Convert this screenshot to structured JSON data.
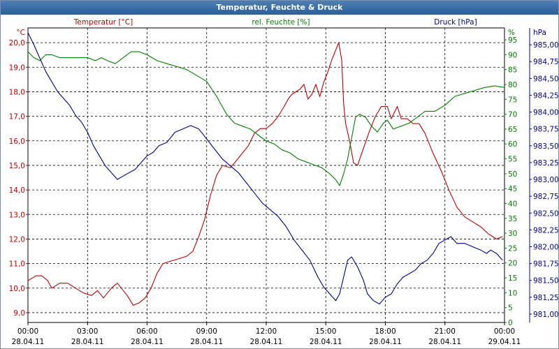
{
  "chart_data": {
    "type": "line",
    "title": "Temperatur, Feuchte & Druck",
    "x_ticks": [
      {
        "time": "00:00",
        "date": "28.04.11"
      },
      {
        "time": "03:00",
        "date": "28.04.11"
      },
      {
        "time": "06:00",
        "date": "28.04.11"
      },
      {
        "time": "09:00",
        "date": "28.04.11"
      },
      {
        "time": "12:00",
        "date": "28.04.11"
      },
      {
        "time": "15:00",
        "date": "28.04.11"
      },
      {
        "time": "18:00",
        "date": "28.04.11"
      },
      {
        "time": "21:00",
        "date": "28.04.11"
      },
      {
        "time": "00:00",
        "date": "29.04.11"
      }
    ],
    "xlim_hours": [
      0,
      24
    ],
    "axes": {
      "temperature": {
        "label": "Temperatur [°C]",
        "unit": "°C",
        "min": 8.6,
        "max": 20.6,
        "ticks": [
          "9,0",
          "10,0",
          "11,0",
          "12,0",
          "13,0",
          "14,0",
          "15,0",
          "16,0",
          "17,0",
          "18,0",
          "19,0",
          "20,0"
        ],
        "tick_values": [
          9,
          10,
          11,
          12,
          13,
          14,
          15,
          16,
          17,
          18,
          19,
          20
        ],
        "color": "#c00000"
      },
      "humidity": {
        "label": "rel. Feuchte [%]",
        "unit": "%",
        "min": 0,
        "max": 99,
        "ticks": [
          "0",
          "5",
          "10",
          "15",
          "20",
          "25",
          "30",
          "35",
          "40",
          "45",
          "50",
          "55",
          "60",
          "65",
          "70",
          "75",
          "80",
          "85",
          "90",
          "95"
        ],
        "tick_values": [
          0,
          5,
          10,
          15,
          20,
          25,
          30,
          35,
          40,
          45,
          50,
          55,
          60,
          65,
          70,
          75,
          80,
          85,
          90,
          95
        ],
        "color": "#008000"
      },
      "pressure": {
        "label": "Druck [hPa]",
        "unit": "hPa",
        "min": 980.875,
        "max": 985.25,
        "ticks": [
          "981,00",
          "981,25",
          "981,50",
          "981,75",
          "982,00",
          "982,25",
          "982,50",
          "982,75",
          "983,00",
          "983,25",
          "983,50",
          "983,75",
          "984,00",
          "984,25",
          "984,50",
          "984,75",
          "985,00"
        ],
        "tick_values": [
          981,
          981.25,
          981.5,
          981.75,
          982,
          982.25,
          982.5,
          982.75,
          983,
          983.25,
          983.5,
          983.75,
          984,
          984.25,
          984.5,
          984.75,
          985
        ],
        "color": "#000090"
      }
    },
    "grid": true,
    "series": [
      {
        "name": "Temperatur",
        "axis": "temperature",
        "color": "#c00000",
        "points": [
          [
            0,
            10.3
          ],
          [
            0.4,
            10.5
          ],
          [
            0.7,
            10.5
          ],
          [
            1,
            10.3
          ],
          [
            1.2,
            10.0
          ],
          [
            1.6,
            10.2
          ],
          [
            2,
            10.2
          ],
          [
            2.4,
            10.0
          ],
          [
            2.8,
            9.8
          ],
          [
            3.2,
            9.7
          ],
          [
            3.5,
            9.9
          ],
          [
            3.8,
            9.6
          ],
          [
            4.2,
            10.0
          ],
          [
            4.5,
            10.2
          ],
          [
            4.8,
            9.9
          ],
          [
            5,
            9.7
          ],
          [
            5.3,
            9.3
          ],
          [
            5.6,
            9.4
          ],
          [
            5.9,
            9.6
          ],
          [
            6.2,
            10.0
          ],
          [
            6.5,
            10.6
          ],
          [
            6.8,
            11.0
          ],
          [
            7.2,
            11.1
          ],
          [
            7.6,
            11.2
          ],
          [
            8,
            11.3
          ],
          [
            8.3,
            11.5
          ],
          [
            8.6,
            12.1
          ],
          [
            8.9,
            12.8
          ],
          [
            9.2,
            13.8
          ],
          [
            9.5,
            14.6
          ],
          [
            9.8,
            15.0
          ],
          [
            10.2,
            14.9
          ],
          [
            10.5,
            15.2
          ],
          [
            10.8,
            15.5
          ],
          [
            11.1,
            15.8
          ],
          [
            11.4,
            16.3
          ],
          [
            11.7,
            16.5
          ],
          [
            12,
            16.5
          ],
          [
            12.3,
            16.7
          ],
          [
            12.6,
            17.0
          ],
          [
            12.9,
            17.4
          ],
          [
            13.1,
            17.7
          ],
          [
            13.3,
            17.9
          ],
          [
            13.5,
            18.0
          ],
          [
            13.7,
            18.1
          ],
          [
            13.9,
            18.3
          ],
          [
            14.1,
            17.7
          ],
          [
            14.3,
            17.9
          ],
          [
            14.5,
            18.3
          ],
          [
            14.7,
            17.8
          ],
          [
            14.9,
            18.4
          ],
          [
            15.1,
            18.8
          ],
          [
            15.3,
            19.3
          ],
          [
            15.5,
            19.7
          ],
          [
            15.65,
            20.0
          ],
          [
            15.8,
            19.3
          ],
          [
            15.9,
            17.5
          ],
          [
            16.0,
            16.7
          ],
          [
            16.2,
            16.0
          ],
          [
            16.4,
            15.1
          ],
          [
            16.6,
            15.0
          ],
          [
            16.9,
            15.7
          ],
          [
            17.2,
            16.4
          ],
          [
            17.5,
            17.0
          ],
          [
            17.8,
            17.4
          ],
          [
            18.1,
            17.4
          ],
          [
            18.3,
            16.9
          ],
          [
            18.6,
            17.4
          ],
          [
            18.8,
            16.9
          ],
          [
            19.1,
            16.9
          ],
          [
            19.4,
            16.7
          ],
          [
            19.7,
            16.7
          ],
          [
            20,
            16.3
          ],
          [
            20.4,
            15.5
          ],
          [
            20.8,
            14.8
          ],
          [
            21.2,
            14.0
          ],
          [
            21.6,
            13.3
          ],
          [
            22,
            12.9
          ],
          [
            22.4,
            12.7
          ],
          [
            22.8,
            12.5
          ],
          [
            23.2,
            12.2
          ],
          [
            23.6,
            12.0
          ],
          [
            23.9,
            12.1
          ]
        ]
      },
      {
        "name": "rel. Feuchte",
        "axis": "humidity",
        "color": "#008000",
        "points": [
          [
            0,
            91
          ],
          [
            0.3,
            89
          ],
          [
            0.6,
            88
          ],
          [
            0.9,
            90
          ],
          [
            1.2,
            90
          ],
          [
            1.6,
            89
          ],
          [
            2,
            89
          ],
          [
            2.5,
            89
          ],
          [
            3,
            89
          ],
          [
            3.4,
            88
          ],
          [
            3.7,
            89
          ],
          [
            4,
            88
          ],
          [
            4.4,
            87
          ],
          [
            4.8,
            89
          ],
          [
            5.2,
            91
          ],
          [
            5.6,
            91
          ],
          [
            6,
            90
          ],
          [
            6.5,
            88
          ],
          [
            7,
            87
          ],
          [
            7.5,
            86
          ],
          [
            8,
            85
          ],
          [
            8.5,
            83
          ],
          [
            9,
            81
          ],
          [
            9.5,
            76
          ],
          [
            10,
            70
          ],
          [
            10.4,
            67
          ],
          [
            10.8,
            66
          ],
          [
            11.2,
            65
          ],
          [
            11.6,
            63
          ],
          [
            12,
            61
          ],
          [
            12.4,
            60
          ],
          [
            12.8,
            58
          ],
          [
            13.2,
            57
          ],
          [
            13.6,
            55
          ],
          [
            14,
            54
          ],
          [
            14.4,
            53
          ],
          [
            14.8,
            52
          ],
          [
            15.2,
            50
          ],
          [
            15.5,
            48
          ],
          [
            15.7,
            46
          ],
          [
            15.9,
            50
          ],
          [
            16.1,
            55
          ],
          [
            16.3,
            62
          ],
          [
            16.5,
            69
          ],
          [
            16.7,
            70
          ],
          [
            17,
            69
          ],
          [
            17.3,
            66
          ],
          [
            17.6,
            64
          ],
          [
            17.9,
            67
          ],
          [
            18.1,
            68
          ],
          [
            18.4,
            65
          ],
          [
            18.8,
            66
          ],
          [
            19.2,
            67
          ],
          [
            19.6,
            69
          ],
          [
            20,
            71
          ],
          [
            20.5,
            71
          ],
          [
            21,
            73
          ],
          [
            21.5,
            76
          ],
          [
            22,
            77
          ],
          [
            22.5,
            78
          ],
          [
            23,
            79
          ],
          [
            23.5,
            79.5
          ],
          [
            24,
            79
          ]
        ]
      },
      {
        "name": "Druck",
        "axis": "pressure",
        "color": "#000090",
        "points": [
          [
            0,
            985.18
          ],
          [
            0.3,
            985.0
          ],
          [
            0.6,
            984.8
          ],
          [
            0.9,
            984.6
          ],
          [
            1.2,
            984.45
          ],
          [
            1.5,
            984.3
          ],
          [
            1.8,
            984.2
          ],
          [
            2.1,
            984.1
          ],
          [
            2.4,
            983.95
          ],
          [
            2.7,
            983.85
          ],
          [
            3,
            983.7
          ],
          [
            3.3,
            983.5
          ],
          [
            3.6,
            983.35
          ],
          [
            3.9,
            983.2
          ],
          [
            4.2,
            983.1
          ],
          [
            4.5,
            983.0
          ],
          [
            4.8,
            983.05
          ],
          [
            5.1,
            983.1
          ],
          [
            5.4,
            983.15
          ],
          [
            5.7,
            983.25
          ],
          [
            6,
            983.35
          ],
          [
            6.3,
            983.4
          ],
          [
            6.6,
            983.5
          ],
          [
            7,
            983.55
          ],
          [
            7.4,
            983.7
          ],
          [
            7.8,
            983.75
          ],
          [
            8.2,
            983.8
          ],
          [
            8.6,
            983.75
          ],
          [
            9,
            983.6
          ],
          [
            9.4,
            983.45
          ],
          [
            9.8,
            983.3
          ],
          [
            10.2,
            983.2
          ],
          [
            10.6,
            983.1
          ],
          [
            11,
            982.95
          ],
          [
            11.4,
            982.8
          ],
          [
            11.8,
            982.65
          ],
          [
            12.2,
            982.55
          ],
          [
            12.6,
            982.45
          ],
          [
            13,
            982.3
          ],
          [
            13.4,
            982.1
          ],
          [
            13.8,
            981.95
          ],
          [
            14.2,
            981.8
          ],
          [
            14.6,
            981.55
          ],
          [
            14.9,
            981.4
          ],
          [
            15.2,
            981.3
          ],
          [
            15.5,
            981.2
          ],
          [
            15.7,
            981.3
          ],
          [
            15.9,
            981.55
          ],
          [
            16.1,
            981.8
          ],
          [
            16.3,
            981.85
          ],
          [
            16.6,
            981.7
          ],
          [
            16.9,
            981.5
          ],
          [
            17.1,
            981.3
          ],
          [
            17.4,
            981.2
          ],
          [
            17.7,
            981.15
          ],
          [
            18,
            981.25
          ],
          [
            18.3,
            981.3
          ],
          [
            18.6,
            981.45
          ],
          [
            18.9,
            981.55
          ],
          [
            19.2,
            981.6
          ],
          [
            19.5,
            981.65
          ],
          [
            19.8,
            981.75
          ],
          [
            20.1,
            981.8
          ],
          [
            20.4,
            981.9
          ],
          [
            20.7,
            982.05
          ],
          [
            21,
            982.1
          ],
          [
            21.3,
            982.15
          ],
          [
            21.6,
            982.05
          ],
          [
            22,
            982.05
          ],
          [
            22.4,
            982.0
          ],
          [
            22.8,
            981.95
          ],
          [
            23.1,
            981.9
          ],
          [
            23.3,
            981.95
          ],
          [
            23.6,
            981.9
          ],
          [
            23.9,
            981.8
          ]
        ]
      }
    ]
  }
}
